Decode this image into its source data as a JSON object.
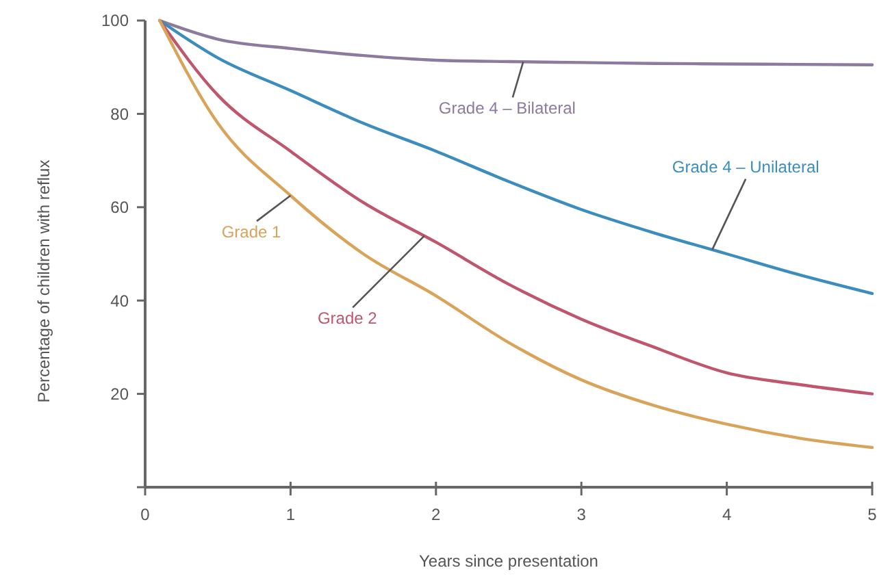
{
  "chart_data": {
    "type": "line",
    "xlabel": "Years since presentation",
    "ylabel": "Percentage of children with reflux",
    "xlim": [
      0,
      5
    ],
    "ylim": [
      0,
      100
    ],
    "xticks": [
      0,
      1,
      2,
      3,
      4,
      5
    ],
    "yticks": [
      {
        "value": 0,
        "label": null
      },
      20,
      40,
      60,
      80,
      100
    ],
    "grid": false,
    "line_style": "solid",
    "x": [
      0.1,
      0.5,
      1,
      1.5,
      2,
      2.5,
      3,
      3.5,
      4,
      4.5,
      5
    ],
    "series": [
      {
        "name": "Grade 4 – Bilateral",
        "color": "#8c7b9e",
        "values": [
          100,
          96,
          94,
          92.5,
          91.5,
          91.2,
          91,
          90.8,
          90.7,
          90.6,
          90.5
        ]
      },
      {
        "name": "Grade 4 – Unilateral",
        "color": "#3b8dbd",
        "values": [
          100,
          92,
          85,
          78,
          72,
          65.5,
          59.5,
          54.5,
          50,
          45.5,
          41.5
        ]
      },
      {
        "name": "Grade 2",
        "color": "#c0566e",
        "values": [
          100,
          84,
          72,
          61,
          52.5,
          43.5,
          36,
          30,
          24.5,
          22,
          20
        ]
      },
      {
        "name": "Grade 1",
        "color": "#d9a45a",
        "values": [
          100,
          78,
          62.5,
          50,
          41,
          31,
          23,
          17.5,
          13.5,
          10.5,
          8.5
        ]
      }
    ]
  }
}
